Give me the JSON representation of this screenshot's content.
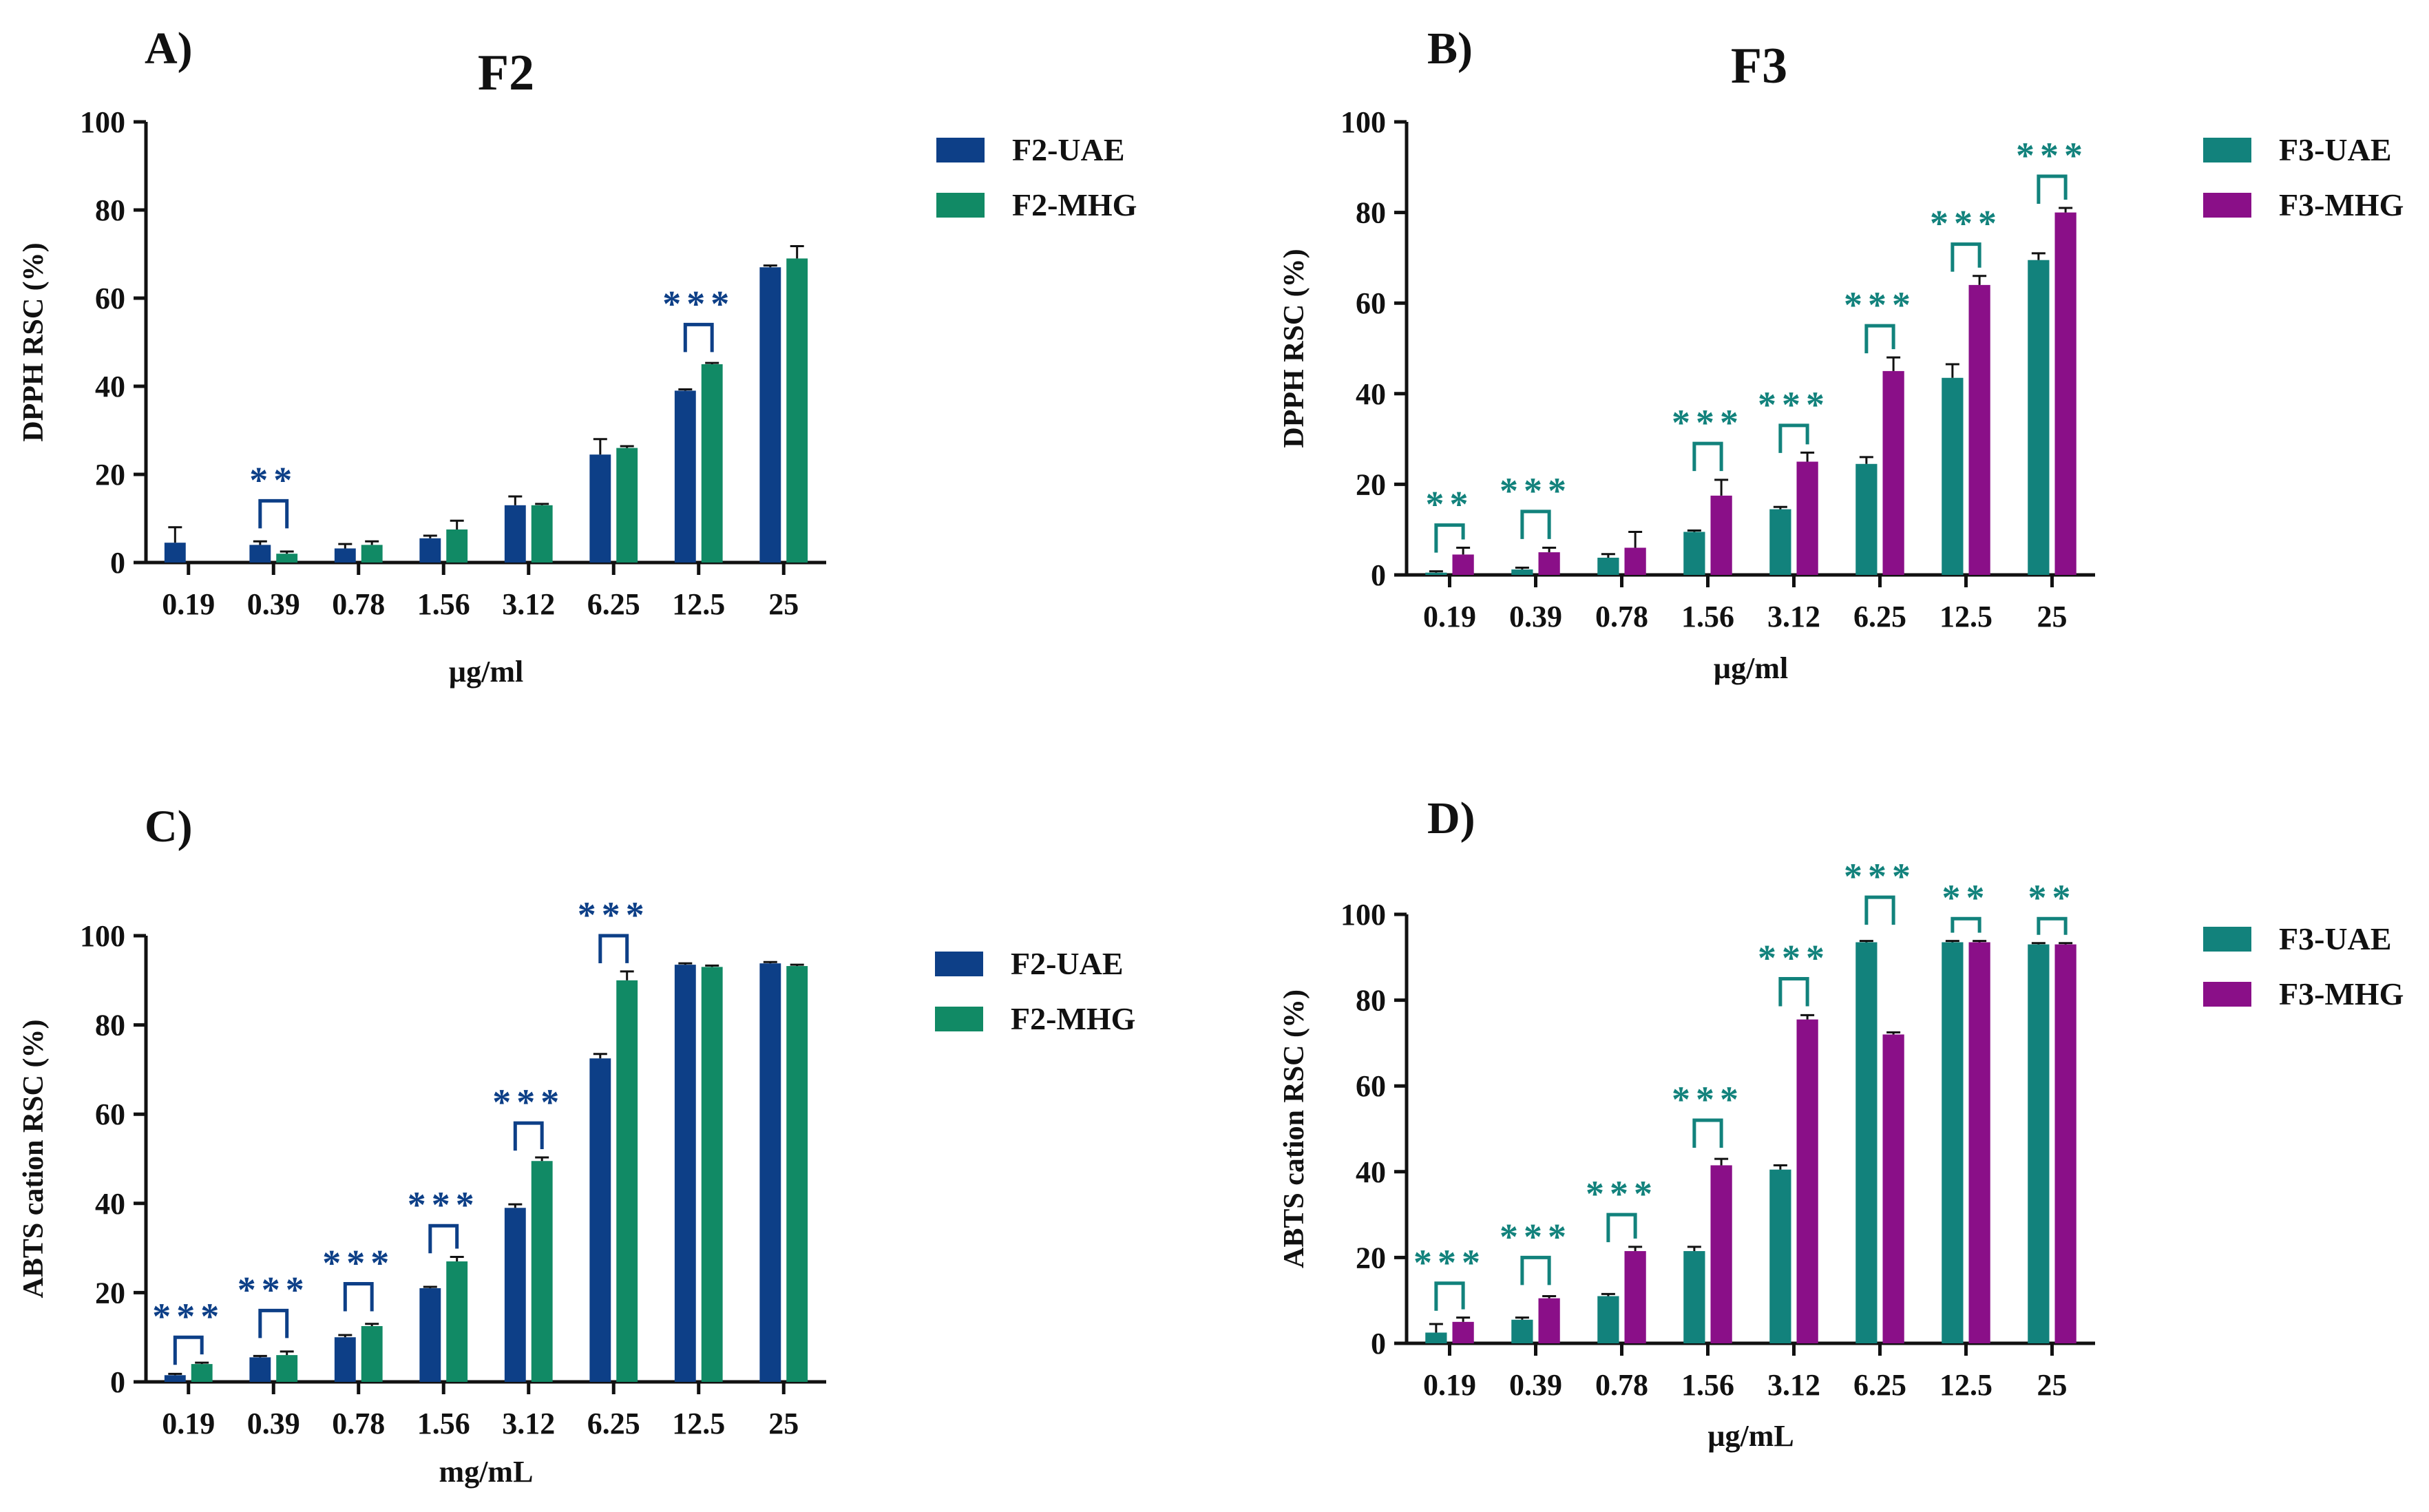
{
  "figure": {
    "colors": {
      "f2_uae": "#0d3f87",
      "f2_mhg": "#118a65",
      "f3_uae": "#12827c",
      "f3_mhg": "#8a0f88",
      "sig_f2": "#0d3f87",
      "sig_f3": "#12827c",
      "axis": "#111111"
    }
  },
  "chart_data": [
    {
      "panel_label": "A)",
      "title": "F2",
      "type": "bar",
      "xlabel": "µg/ml",
      "ylabel": "DPPH RSC (%)",
      "ylim": [
        0,
        100
      ],
      "yticks": [
        "0",
        "20",
        "40",
        "60",
        "80",
        "100"
      ],
      "categories": [
        "0.19",
        "0.39",
        "0.78",
        "1.56",
        "3.12",
        "6.25",
        "12.5",
        "25"
      ],
      "series": [
        {
          "name": "F2-UAE",
          "values": [
            4.5,
            4.0,
            3.2,
            5.5,
            13.0,
            24.5,
            39.0,
            67.0
          ],
          "errors": [
            3.5,
            0.8,
            1.0,
            0.6,
            2.0,
            3.5,
            0.3,
            0.4
          ]
        },
        {
          "name": "F2-MHG",
          "values": [
            0,
            2.0,
            4.0,
            7.5,
            13.0,
            26.0,
            45.0,
            69.0
          ],
          "errors": [
            0,
            0.5,
            0.8,
            2.0,
            0.3,
            0.4,
            0.3,
            2.8
          ]
        }
      ],
      "significance": [
        {
          "category": "0.39",
          "stars": "**",
          "top": 14
        },
        {
          "category": "12.5",
          "stars": "***",
          "top": 54
        }
      ]
    },
    {
      "panel_label": "B)",
      "title": "F3",
      "type": "bar",
      "xlabel": "µg/ml",
      "ylabel": "DPPH RSC (%)",
      "ylim": [
        0,
        100
      ],
      "yticks": [
        "0",
        "20",
        "40",
        "60",
        "80",
        "100"
      ],
      "categories": [
        "0.19",
        "0.39",
        "0.78",
        "1.56",
        "3.12",
        "6.25",
        "12.5",
        "25"
      ],
      "series": [
        {
          "name": "F3-UAE",
          "values": [
            0.5,
            1.2,
            3.8,
            9.5,
            14.5,
            24.5,
            43.5,
            69.5
          ],
          "errors": [
            0.3,
            0.4,
            0.8,
            0.3,
            0.5,
            1.5,
            3.0,
            1.5
          ]
        },
        {
          "name": "F3-MHG",
          "values": [
            4.5,
            5.0,
            6.0,
            17.5,
            25.0,
            45.0,
            64.0,
            80.0
          ],
          "errors": [
            1.5,
            1.0,
            3.5,
            3.5,
            2.0,
            3.0,
            2.0,
            1.0
          ]
        }
      ],
      "significance": [
        {
          "category": "0.19",
          "stars": "**",
          "top": 11
        },
        {
          "category": "0.39",
          "stars": "***",
          "top": 14
        },
        {
          "category": "1.56",
          "stars": "***",
          "top": 29
        },
        {
          "category": "3.12",
          "stars": "***",
          "top": 33
        },
        {
          "category": "6.25",
          "stars": "***",
          "top": 55
        },
        {
          "category": "12.5",
          "stars": "***",
          "top": 73
        },
        {
          "category": "25",
          "stars": "***",
          "top": 88
        }
      ]
    },
    {
      "panel_label": "C)",
      "title": "",
      "type": "bar",
      "xlabel": "mg/mL",
      "ylabel": "ABTS cation RSC (%)",
      "ylim": [
        0,
        100
      ],
      "yticks": [
        "0",
        "20",
        "40",
        "60",
        "80",
        "100"
      ],
      "categories": [
        "0.19",
        "0.39",
        "0.78",
        "1.56",
        "3.12",
        "6.25",
        "12.5",
        "25"
      ],
      "series": [
        {
          "name": "F2-UAE",
          "values": [
            1.5,
            5.5,
            10.0,
            21.0,
            39.0,
            72.5,
            93.5,
            93.8
          ],
          "errors": [
            0.3,
            0.3,
            0.5,
            0.3,
            0.8,
            1.0,
            0.3,
            0.3
          ]
        },
        {
          "name": "F2-MHG",
          "values": [
            4.0,
            6.0,
            12.5,
            27.0,
            49.5,
            90.0,
            93.0,
            93.2
          ],
          "errors": [
            0.3,
            0.8,
            0.5,
            1.0,
            0.8,
            2.0,
            0.3,
            0.3
          ]
        }
      ],
      "significance": [
        {
          "category": "0.19",
          "stars": "***",
          "top": 10
        },
        {
          "category": "0.39",
          "stars": "***",
          "top": 16
        },
        {
          "category": "0.78",
          "stars": "***",
          "top": 22
        },
        {
          "category": "1.56",
          "stars": "***",
          "top": 35
        },
        {
          "category": "3.12",
          "stars": "***",
          "top": 58
        },
        {
          "category": "6.25",
          "stars": "***",
          "top": 100
        }
      ]
    },
    {
      "panel_label": "D)",
      "title": "",
      "type": "bar",
      "xlabel": "µg/mL",
      "ylabel": "ABTS cation RSC (%)",
      "ylim": [
        0,
        100
      ],
      "yticks": [
        "0",
        "20",
        "40",
        "60",
        "80",
        "100"
      ],
      "categories": [
        "0.19",
        "0.39",
        "0.78",
        "1.56",
        "3.12",
        "6.25",
        "12.5",
        "25"
      ],
      "series": [
        {
          "name": "F3-UAE",
          "values": [
            2.5,
            5.5,
            11.0,
            21.5,
            40.5,
            93.5,
            93.5,
            93.0
          ],
          "errors": [
            2.0,
            0.5,
            0.5,
            1.0,
            1.0,
            0.3,
            0.3,
            0.3
          ]
        },
        {
          "name": "F3-MHG",
          "values": [
            5.0,
            10.5,
            21.5,
            41.5,
            75.5,
            72.0,
            93.5,
            93.0
          ],
          "errors": [
            1.0,
            0.5,
            1.0,
            1.5,
            1.0,
            0.5,
            0.3,
            0.3
          ]
        }
      ],
      "significance": [
        {
          "category": "0.19",
          "stars": "***",
          "top": 14
        },
        {
          "category": "0.39",
          "stars": "***",
          "top": 20
        },
        {
          "category": "0.78",
          "stars": "***",
          "top": 30
        },
        {
          "category": "1.56",
          "stars": "***",
          "top": 52
        },
        {
          "category": "3.12",
          "stars": "***",
          "top": 85
        },
        {
          "category": "6.25",
          "stars": "***",
          "top": 104
        },
        {
          "category": "12.5",
          "stars": "**",
          "top": 99
        },
        {
          "category": "25",
          "stars": "**",
          "top": 99
        }
      ]
    }
  ]
}
